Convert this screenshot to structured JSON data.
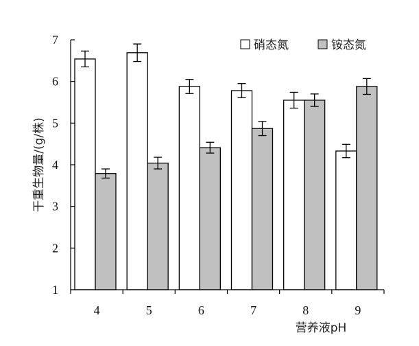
{
  "chart_data": {
    "type": "bar",
    "categories": [
      "4",
      "5",
      "6",
      "7",
      "8",
      "9"
    ],
    "series": [
      {
        "name": "硝态氮",
        "values": [
          6.54,
          6.69,
          5.88,
          5.78,
          5.55,
          4.33
        ],
        "errors": [
          0.19,
          0.21,
          0.17,
          0.17,
          0.19,
          0.16
        ],
        "color": "#ffffff"
      },
      {
        "name": "铵态氮",
        "values": [
          3.79,
          4.04,
          4.41,
          4.87,
          5.55,
          5.88
        ],
        "errors": [
          0.11,
          0.14,
          0.13,
          0.17,
          0.15,
          0.19
        ],
        "color": "#c0c0c0"
      }
    ],
    "xlabel": "营养液pH",
    "ylabel": "干重生物量/(g/株)",
    "ylim": [
      1,
      7
    ],
    "yticks": [
      "1",
      "2",
      "3",
      "4",
      "5",
      "6",
      "7"
    ],
    "grid": false,
    "legend_position": "top-right"
  }
}
